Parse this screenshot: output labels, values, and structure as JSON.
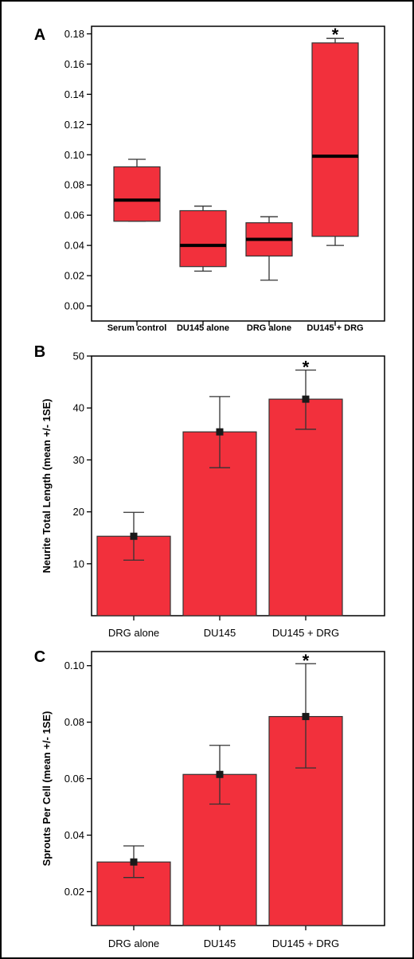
{
  "colors": {
    "fill": "#f2303c",
    "stroke": "#000000",
    "whisker": "#333333",
    "background": "#ffffff"
  },
  "chart_data": [
    {
      "panel": "A",
      "type": "box",
      "categories": [
        "Serum control",
        "DU145 alone",
        "DRG alone",
        "DU145 + DRG"
      ],
      "boxes": [
        {
          "min": 0.056,
          "q1": 0.056,
          "median": 0.07,
          "q3": 0.092,
          "max": 0.097
        },
        {
          "min": 0.023,
          "q1": 0.026,
          "median": 0.04,
          "q3": 0.063,
          "max": 0.066
        },
        {
          "min": 0.017,
          "q1": 0.033,
          "median": 0.044,
          "q3": 0.055,
          "max": 0.059
        },
        {
          "min": 0.04,
          "q1": 0.046,
          "median": 0.099,
          "q3": 0.174,
          "max": 0.177
        }
      ],
      "significance": [
        false,
        false,
        false,
        true
      ],
      "significance_marker": "*",
      "ylim": [
        -0.01,
        0.185
      ],
      "yticks": [
        "0.00",
        "0.02",
        "0.04",
        "0.06",
        "0.08",
        "0.10",
        "0.12",
        "0.14",
        "0.16",
        "0.18"
      ],
      "ylabel": "",
      "grid": false
    },
    {
      "panel": "B",
      "type": "bar",
      "categories": [
        "DRG alone",
        "DU145",
        "DU145 + DRG"
      ],
      "values": [
        15.3,
        35.4,
        41.7
      ],
      "error_low": [
        10.7,
        28.5,
        35.9
      ],
      "error_high": [
        19.9,
        42.2,
        47.3
      ],
      "significance": [
        false,
        false,
        true
      ],
      "significance_marker": "*",
      "ylim": [
        0,
        50
      ],
      "yticks": [
        "10",
        "20",
        "30",
        "40",
        "50"
      ],
      "ylabel": "Neurite Total Length (mean +/- 1SE)",
      "grid": false
    },
    {
      "panel": "C",
      "type": "bar",
      "categories": [
        "DRG alone",
        "DU145",
        "DU145 + DRG"
      ],
      "values": [
        0.0305,
        0.0615,
        0.082
      ],
      "error_low": [
        0.025,
        0.051,
        0.0638
      ],
      "error_high": [
        0.0362,
        0.0718,
        0.1007
      ],
      "significance": [
        false,
        false,
        true
      ],
      "significance_marker": "*",
      "ylim": [
        0.008,
        0.105
      ],
      "yticks": [
        "0.02",
        "0.04",
        "0.06",
        "0.08",
        "0.10"
      ],
      "ylabel": "Sprouts Per Cell (mean +/- 1SE)",
      "grid": false
    }
  ]
}
